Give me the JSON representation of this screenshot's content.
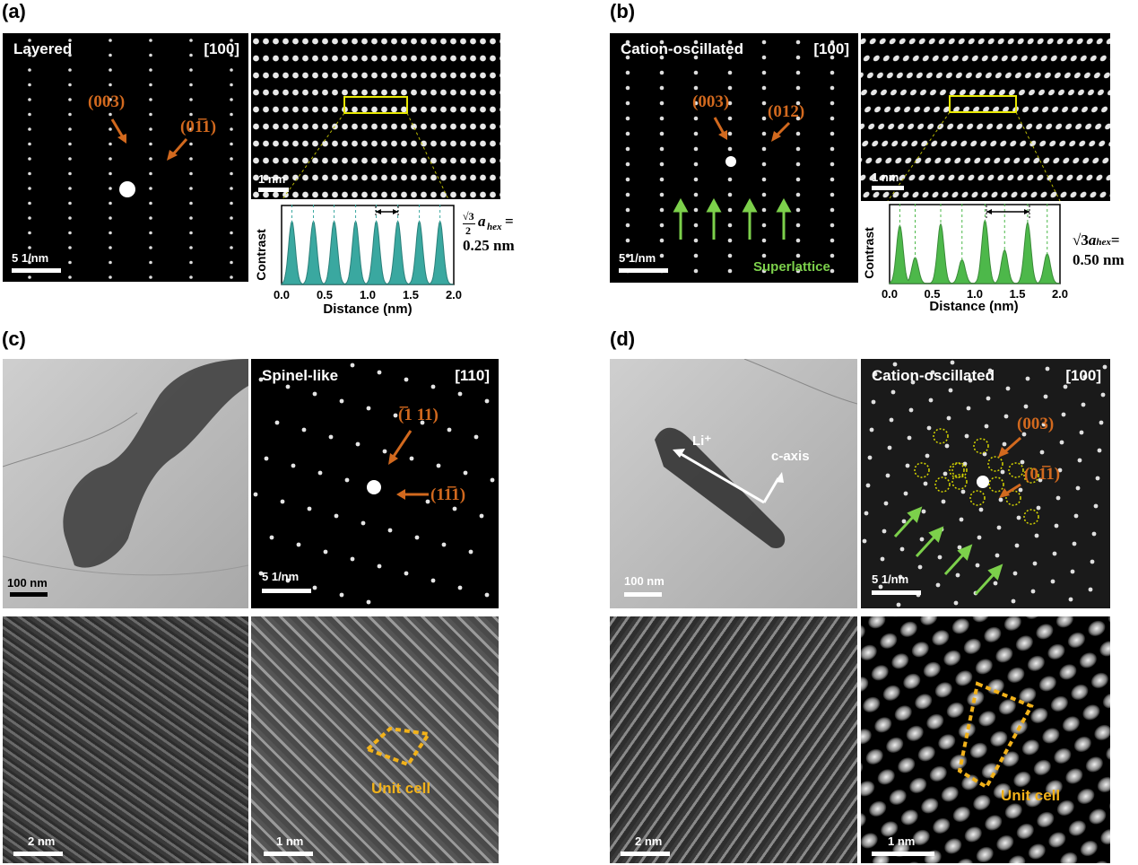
{
  "panels": {
    "a": {
      "label": "(a)",
      "saed_title": "Layered",
      "zone_axis": "[100]",
      "spot1": "(003)",
      "spot2": "(01̅1)",
      "saed_scale": "5 1/nm",
      "hr_scale": "1 nm",
      "profile": {
        "ylabel": "Contrast",
        "xlabel": "Distance (nm)",
        "ticks": [
          "0.0",
          "0.5",
          "1.0",
          "1.5",
          "2.0"
        ],
        "fill_color": "#3aa8a0",
        "peaks": [
          0.12,
          0.37,
          0.61,
          0.86,
          1.1,
          1.35,
          1.6,
          1.84
        ]
      },
      "eq_line1": "√3",
      "eq_line2": "2",
      "eq_var": "a",
      "eq_sub": "hex",
      "eq_end": "=",
      "eq_value": "0.25 nm"
    },
    "b": {
      "label": "(b)",
      "saed_title": "Cation-oscillated",
      "zone_axis": "[100]",
      "spot1": "(003)",
      "spot2": "(012)",
      "superlattice": "Superlattice",
      "saed_scale": "5 1/nm",
      "hr_scale": "1 nm",
      "profile": {
        "ylabel": "Contrast",
        "xlabel": "Distance (nm)",
        "ticks": [
          "0.0",
          "0.5",
          "1.0",
          "1.5",
          "2.0"
        ],
        "fill_color": "#4db84a",
        "peaks": [
          0.12,
          0.3,
          0.6,
          0.85,
          1.12,
          1.35,
          1.62,
          1.85
        ],
        "heights": [
          0.78,
          0.35,
          0.8,
          0.32,
          0.85,
          0.45,
          0.82,
          0.4
        ]
      },
      "eq_root": "√3",
      "eq_var": "a",
      "eq_sub": "hex",
      "eq_end": "=",
      "eq_value": "0.50 nm"
    },
    "c": {
      "label": "(c)",
      "tem_scale": "100 nm",
      "saed_title": "Spinel-like",
      "zone_axis": "[110]",
      "spot1": "(̅1 11)",
      "spot2": "(11̅1)",
      "saed_scale": "5 1/nm",
      "hr1_scale": "2 nm",
      "hr2_scale": "1 nm",
      "unit_cell": "Unit cell"
    },
    "d": {
      "label": "(d)",
      "tem_scale": "100 nm",
      "li_label": "Li⁺",
      "c_axis": "c-axis",
      "saed_title": "Cation-oscillated",
      "zone_axis": "[100]",
      "spot1": "(003)",
      "spot2": "(01̅1)",
      "saed_scale": "5 1/nm",
      "hr1_scale": "2 nm",
      "hr2_scale": "1 nm",
      "unit_cell": "Unit cell"
    }
  },
  "colors": {
    "orange": "#d2691e",
    "green": "#7cd04b",
    "yellow": "#f2b21a"
  }
}
